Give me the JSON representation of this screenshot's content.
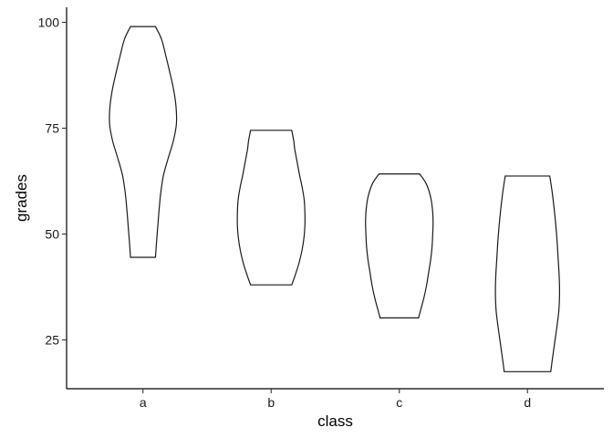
{
  "chart_data": {
    "type": "violin",
    "xlabel": "class",
    "ylabel": "grades",
    "categories": [
      "a",
      "b",
      "c",
      "d"
    ],
    "ylim": [
      13.5,
      102.5
    ],
    "yticks": [
      25,
      50,
      75,
      100
    ],
    "grid": false,
    "legend": "none",
    "line_color": "#1a1a1a",
    "fill_color": "#ffffff",
    "violins": [
      {
        "category": "a",
        "min": 44.5,
        "max": 99.0,
        "profile": [
          [
            44.5,
            0.37
          ],
          [
            48,
            0.4
          ],
          [
            52,
            0.44
          ],
          [
            56,
            0.48
          ],
          [
            60,
            0.53
          ],
          [
            64,
            0.61
          ],
          [
            68,
            0.75
          ],
          [
            72,
            0.9
          ],
          [
            76,
            0.99
          ],
          [
            80,
            0.98
          ],
          [
            84,
            0.91
          ],
          [
            88,
            0.8
          ],
          [
            92,
            0.68
          ],
          [
            96,
            0.55
          ],
          [
            99.0,
            0.37
          ]
        ]
      },
      {
        "category": "b",
        "min": 38.0,
        "max": 74.5,
        "profile": [
          [
            38.0,
            0.61
          ],
          [
            40,
            0.7
          ],
          [
            43,
            0.82
          ],
          [
            46,
            0.91
          ],
          [
            49,
            0.97
          ],
          [
            52,
            1.0
          ],
          [
            55,
            1.0
          ],
          [
            58,
            0.98
          ],
          [
            61,
            0.92
          ],
          [
            64,
            0.84
          ],
          [
            67,
            0.77
          ],
          [
            70,
            0.7
          ],
          [
            72,
            0.67
          ],
          [
            74.5,
            0.61
          ]
        ]
      },
      {
        "category": "c",
        "min": 30.2,
        "max": 64.2,
        "profile": [
          [
            30.2,
            0.57
          ],
          [
            32,
            0.63
          ],
          [
            35,
            0.73
          ],
          [
            38,
            0.81
          ],
          [
            41,
            0.87
          ],
          [
            44,
            0.93
          ],
          [
            47,
            0.97
          ],
          [
            50,
            0.99
          ],
          [
            53,
            1.0
          ],
          [
            56,
            0.98
          ],
          [
            59,
            0.92
          ],
          [
            62,
            0.79
          ],
          [
            64.2,
            0.6
          ]
        ]
      },
      {
        "category": "d",
        "min": 17.5,
        "max": 63.7,
        "profile": [
          [
            17.5,
            0.69
          ],
          [
            20,
            0.73
          ],
          [
            24,
            0.8
          ],
          [
            28,
            0.87
          ],
          [
            32,
            0.93
          ],
          [
            36,
            0.95
          ],
          [
            40,
            0.94
          ],
          [
            44,
            0.91
          ],
          [
            48,
            0.88
          ],
          [
            52,
            0.84
          ],
          [
            56,
            0.79
          ],
          [
            60,
            0.73
          ],
          [
            63.7,
            0.66
          ]
        ]
      }
    ]
  }
}
